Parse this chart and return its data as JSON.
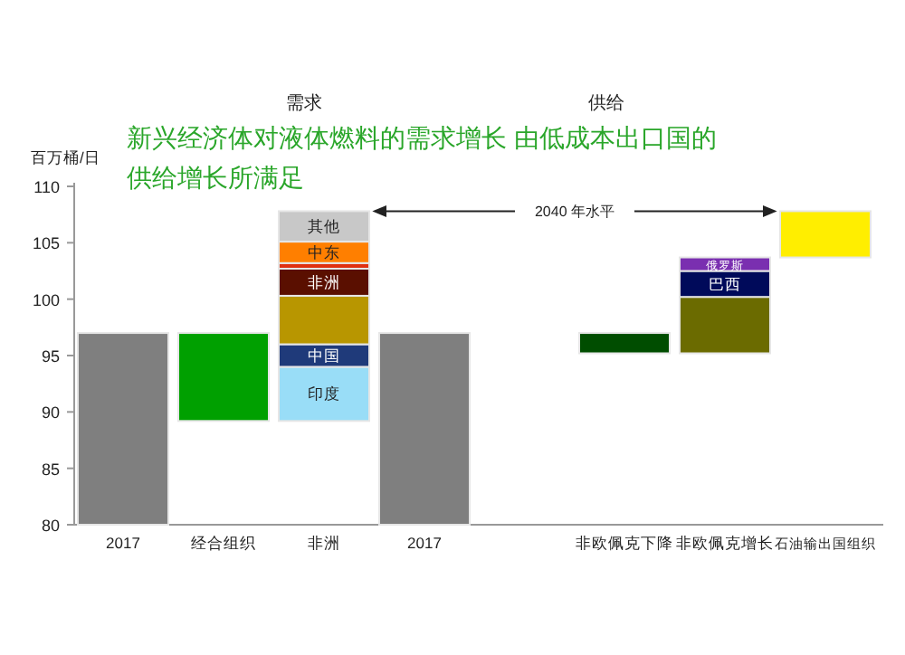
{
  "chart_data": {
    "type": "bar",
    "title": "新兴经济体对液体燃料的需求增长 由低成本出口国的供给增长所满足",
    "ylabel": "百万桶/日",
    "annotations": [
      "需求",
      "供给"
    ],
    "categories": [
      "2017",
      "经合组织",
      "非洲",
      "2017",
      "非欧佩克下降",
      "非欧佩克增长",
      "石油输出国组织"
    ],
    "series": [
      {
        "color": "#7f7f7f",
        "base": [
          80,
          null,
          null,
          80,
          null,
          null,
          null
        ],
        "values": [
          17,
          null,
          null,
          17,
          null,
          null,
          null
        ]
      },
      {
        "color": "#00a000",
        "base": [
          null,
          89.2,
          null,
          null,
          null,
          null,
          null
        ],
        "values": [
          null,
          7.8,
          null,
          null,
          null,
          null,
          null
        ]
      },
      {
        "name": "印度",
        "color": "#99ddf7",
        "base": [
          null,
          null,
          89.2,
          null,
          null,
          null,
          null
        ],
        "values": [
          null,
          null,
          4.8,
          null,
          null,
          null,
          null
        ]
      },
      {
        "name": "中国",
        "color": "#1f3a7a",
        "base": [
          null,
          null,
          94.0,
          null,
          null,
          null,
          null
        ],
        "values": [
          null,
          null,
          2.0,
          null,
          null,
          null,
          null
        ]
      },
      {
        "color": "#b89600",
        "base": [
          null,
          null,
          96.0,
          null,
          null,
          null,
          null
        ],
        "values": [
          null,
          null,
          4.3,
          null,
          null,
          null,
          null
        ]
      },
      {
        "name": "非洲",
        "color": "#5a0f00",
        "base": [
          null,
          null,
          100.3,
          null,
          null,
          null,
          null
        ],
        "values": [
          null,
          null,
          2.4,
          null,
          null,
          null,
          null
        ]
      },
      {
        "color": "#e03010",
        "base": [
          null,
          null,
          102.7,
          null,
          null,
          null,
          null
        ],
        "values": [
          null,
          null,
          0.5,
          null,
          null,
          null,
          null
        ]
      },
      {
        "name": "中东",
        "color": "#ff7f00",
        "base": [
          null,
          null,
          103.2,
          null,
          null,
          null,
          null
        ],
        "values": [
          null,
          null,
          1.9,
          null,
          null,
          null,
          null
        ]
      },
      {
        "name": "其他",
        "color": "#c8c8c8",
        "base": [
          null,
          null,
          105.1,
          null,
          null,
          null,
          null
        ],
        "values": [
          null,
          null,
          2.7,
          null,
          null,
          null,
          null
        ]
      },
      {
        "color": "#004d00",
        "base": [
          null,
          null,
          null,
          null,
          95.2,
          null,
          null
        ],
        "values": [
          null,
          null,
          null,
          null,
          1.8,
          null,
          null
        ]
      },
      {
        "color": "#6b6b00",
        "base": [
          null,
          null,
          null,
          null,
          null,
          95.2,
          null
        ],
        "values": [
          null,
          null,
          null,
          null,
          null,
          5.0,
          null
        ]
      },
      {
        "name": "巴西",
        "color": "#000a5a",
        "base": [
          null,
          null,
          null,
          null,
          null,
          100.2,
          null
        ],
        "values": [
          null,
          null,
          null,
          null,
          null,
          2.3,
          null
        ]
      },
      {
        "name": "俄罗斯",
        "color": "#7a2fb0",
        "base": [
          null,
          null,
          null,
          null,
          null,
          102.5,
          null
        ],
        "values": [
          null,
          null,
          null,
          null,
          null,
          1.2,
          null
        ]
      },
      {
        "color": "#ffee00",
        "base": [
          null,
          null,
          null,
          null,
          null,
          null,
          103.7
        ],
        "values": [
          null,
          null,
          null,
          null,
          null,
          null,
          4.1
        ]
      }
    ],
    "ref_lines": [
      {
        "axis": "y",
        "value": 107.8,
        "label": "2040 年水平"
      }
    ],
    "ylim": [
      80,
      110
    ],
    "yticks": [
      80,
      85,
      90,
      95,
      100,
      105,
      110
    ]
  }
}
